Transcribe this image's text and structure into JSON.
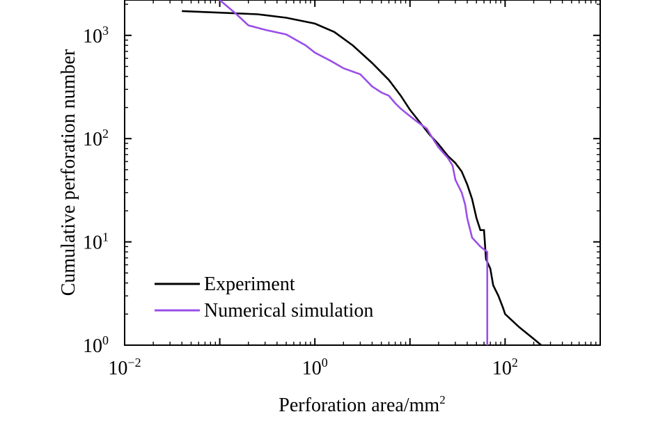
{
  "chart_data": {
    "type": "line",
    "xlabel": "Perforation area/mm",
    "xlabel_superscript": "2",
    "ylabel": "Cumulative perforation number",
    "xscale": "log",
    "yscale": "log",
    "xlim": [
      0.01,
      1000
    ],
    "ylim": [
      1,
      2200
    ],
    "xticks": [
      {
        "value": 0.01,
        "base": "10",
        "exp": "−2"
      },
      {
        "value": 1,
        "base": "10",
        "exp": "0"
      },
      {
        "value": 100,
        "base": "10",
        "exp": "2"
      }
    ],
    "yticks": [
      {
        "value": 1,
        "base": "10",
        "exp": "0"
      },
      {
        "value": 10,
        "base": "10",
        "exp": "1"
      },
      {
        "value": 100,
        "base": "10",
        "exp": "2"
      },
      {
        "value": 1000,
        "base": "10",
        "exp": "3"
      }
    ],
    "legend_position": "bottom-left",
    "grid": false,
    "series": [
      {
        "name": "Experiment",
        "color": "#000000",
        "points": [
          [
            0.04,
            1720
          ],
          [
            0.1,
            1660
          ],
          [
            0.25,
            1600
          ],
          [
            0.5,
            1480
          ],
          [
            1.0,
            1300
          ],
          [
            1.6,
            1080
          ],
          [
            2.5,
            800
          ],
          [
            4.0,
            540
          ],
          [
            6.0,
            370
          ],
          [
            8.0,
            260
          ],
          [
            10.0,
            190
          ],
          [
            13.0,
            140
          ],
          [
            16.0,
            110
          ],
          [
            20.0,
            88
          ],
          [
            25.0,
            68
          ],
          [
            30.0,
            58
          ],
          [
            35.0,
            48
          ],
          [
            40.0,
            36
          ],
          [
            45.0,
            26
          ],
          [
            50.0,
            17
          ],
          [
            55.0,
            13
          ],
          [
            60.0,
            13
          ],
          [
            63.0,
            6.8
          ],
          [
            70.0,
            5.5
          ],
          [
            75.0,
            3.8
          ],
          [
            85.0,
            3.0
          ],
          [
            95.0,
            2.3
          ],
          [
            100.0,
            2.0
          ],
          [
            140.0,
            1.5
          ],
          [
            200.0,
            1.15
          ],
          [
            240.0,
            1.0
          ]
        ]
      },
      {
        "name": "Numerical simulation",
        "color": "#9a4ee8",
        "points": [
          [
            0.1,
            2200
          ],
          [
            0.15,
            1600
          ],
          [
            0.2,
            1250
          ],
          [
            0.3,
            1130
          ],
          [
            0.5,
            1020
          ],
          [
            0.8,
            800
          ],
          [
            1.0,
            680
          ],
          [
            1.5,
            560
          ],
          [
            2.0,
            480
          ],
          [
            3.0,
            420
          ],
          [
            4.0,
            320
          ],
          [
            5.0,
            280
          ],
          [
            6.0,
            260
          ],
          [
            7.0,
            220
          ],
          [
            8.0,
            195
          ],
          [
            10.0,
            165
          ],
          [
            12.0,
            145
          ],
          [
            15.0,
            125
          ],
          [
            18.0,
            95
          ],
          [
            20.0,
            82
          ],
          [
            25.0,
            65
          ],
          [
            28.0,
            55
          ],
          [
            30.0,
            40
          ],
          [
            35.0,
            30
          ],
          [
            38.0,
            23
          ],
          [
            40.0,
            17
          ],
          [
            45.0,
            11
          ],
          [
            55.0,
            9
          ],
          [
            65.0,
            8
          ],
          [
            65.0,
            1
          ]
        ]
      }
    ]
  }
}
